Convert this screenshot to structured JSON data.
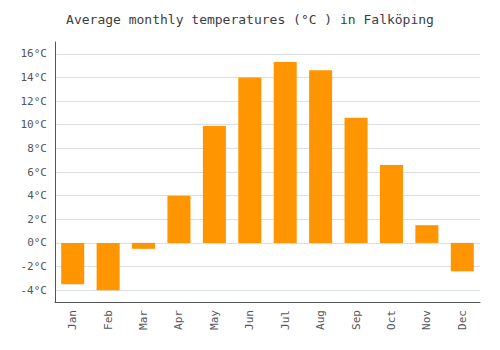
{
  "chart_data": {
    "type": "bar",
    "title": "Average monthly temperatures (°C ) in Falköping",
    "categories": [
      "Jan",
      "Feb",
      "Mar",
      "Apr",
      "May",
      "Jun",
      "Jul",
      "Aug",
      "Sep",
      "Oct",
      "Nov",
      "Dec"
    ],
    "values": [
      -3.5,
      -4.0,
      -0.5,
      4.0,
      9.9,
      14.0,
      15.3,
      14.6,
      10.6,
      6.6,
      1.5,
      -2.4
    ],
    "color": "#FF9500",
    "ylim": [
      -5,
      17
    ],
    "yticks": [
      {
        "value": -4,
        "label": "-4°C"
      },
      {
        "value": -2,
        "label": "-2°C"
      },
      {
        "value": 0,
        "label": "0°C"
      },
      {
        "value": 2,
        "label": "2°C"
      },
      {
        "value": 4,
        "label": "4°C"
      },
      {
        "value": 6,
        "label": "6°C"
      },
      {
        "value": 8,
        "label": "8°C"
      },
      {
        "value": 10,
        "label": "10°C"
      },
      {
        "value": 12,
        "label": "12°C"
      },
      {
        "value": 14,
        "label": "14°C"
      },
      {
        "value": 16,
        "label": "16°C"
      }
    ],
    "grid": true
  }
}
